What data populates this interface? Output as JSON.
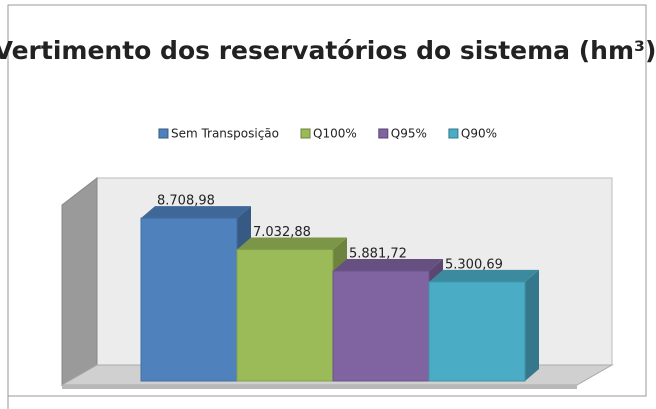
{
  "chart_data": {
    "type": "bar3d",
    "title": "Vertimento dos reservatórios do sistema (hm³)",
    "series": [
      {
        "name": "Sem Transposição",
        "color": "#4f81bd",
        "values": [
          8708.98
        ],
        "value_labels": [
          "8.708,98"
        ]
      },
      {
        "name": "Q100%",
        "color": "#9bbb59",
        "values": [
          7032.88
        ],
        "value_labels": [
          "7.032,88"
        ]
      },
      {
        "name": "Q95%",
        "color": "#8064a2",
        "values": [
          5881.72
        ],
        "value_labels": [
          "5.881,72"
        ]
      },
      {
        "name": "Q90%",
        "color": "#4bacc6",
        "values": [
          5300.69
        ],
        "value_labels": [
          "5.300,69"
        ]
      }
    ],
    "ylim": [
      0,
      10000
    ],
    "legend": "top"
  }
}
